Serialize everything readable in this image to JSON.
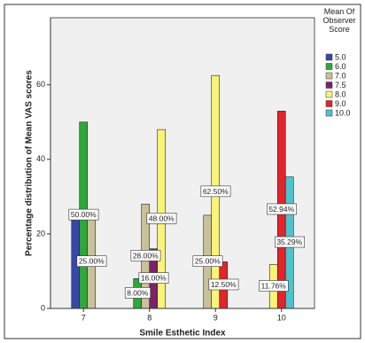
{
  "chart_data": {
    "type": "bar",
    "x_label": "Smile Esthetic Index",
    "y_label": "Percentage distribution of Mean VAS scores",
    "legend_title": "Mean Of Observer Score",
    "legend": "right",
    "categories": [
      "7",
      "8",
      "9",
      "10"
    ],
    "ylim": [
      0,
      78
    ],
    "yticks": [
      0,
      20,
      40,
      60
    ],
    "series": [
      {
        "name": "5.0",
        "color": "#3a46a8",
        "values": [
          25,
          null,
          null,
          null
        ],
        "value_labels": [
          null,
          null,
          null,
          null
        ]
      },
      {
        "name": "6.0",
        "color": "#2fa83a",
        "values": [
          50,
          8,
          null,
          null
        ],
        "value_labels": [
          "50.00%",
          "8.00%",
          null,
          null
        ]
      },
      {
        "name": "7.0",
        "color": "#c9c19a",
        "values": [
          25,
          28,
          25,
          null
        ],
        "value_labels": [
          "25.00%",
          "28.00%",
          "25.00%",
          null
        ]
      },
      {
        "name": "7.5",
        "color": "#7a2468",
        "values": [
          null,
          16,
          null,
          null
        ],
        "value_labels": [
          null,
          "16.00%",
          null,
          null
        ]
      },
      {
        "name": "8.0",
        "color": "#f8f47a",
        "values": [
          null,
          48,
          62.5,
          11.76
        ],
        "value_labels": [
          null,
          "48.00%",
          "62.50%",
          "11.76%"
        ]
      },
      {
        "name": "9.0",
        "color": "#e2242b",
        "values": [
          null,
          null,
          12.5,
          52.94
        ],
        "value_labels": [
          null,
          null,
          "12.50%",
          "52.94%"
        ]
      },
      {
        "name": "10.0",
        "color": "#4fc3cc",
        "values": [
          null,
          null,
          null,
          35.29
        ],
        "value_labels": [
          null,
          null,
          null,
          "35.29%"
        ]
      }
    ]
  }
}
